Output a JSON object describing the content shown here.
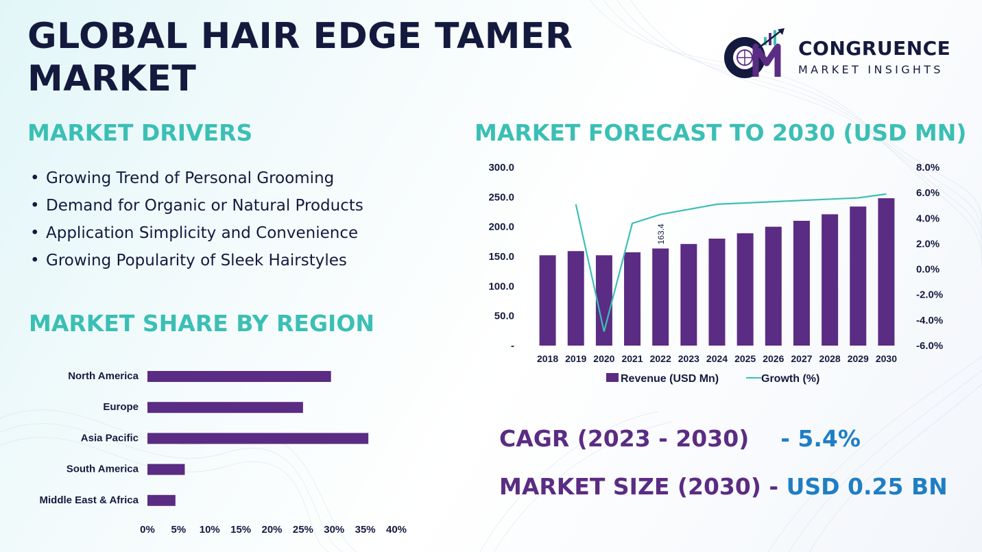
{
  "title": "GLOBAL HAIR EDGE TAMER MARKET",
  "logo": {
    "name": "CONGRUENCE",
    "tagline": "MARKET INSIGHTS",
    "monogram": "CM"
  },
  "drivers": {
    "heading": "MARKET DRIVERS",
    "items": [
      "Growing Trend of Personal Grooming",
      "Demand for Organic or Natural Products",
      "Application Simplicity and Convenience",
      "Growing Popularity of Sleek Hairstyles"
    ]
  },
  "forecast": {
    "heading": "MARKET FORECAST TO 2030 (USD MN)"
  },
  "region": {
    "heading": "MARKET SHARE BY REGION"
  },
  "kpis": {
    "cagr_label": "CAGR (2023 - 2030)",
    "cagr_value": "- 5.4%",
    "size_label": "MARKET SIZE (2030) -",
    "size_value": "USD 0.25 BN"
  },
  "colors": {
    "bar": "#5b2c83",
    "line": "#3bbfb5",
    "title": "#141a3e",
    "accent": "#3bbfb5",
    "value": "#1f7ec4"
  },
  "chart_data": [
    {
      "type": "bar",
      "combo_line": true,
      "categories": [
        "2018",
        "2019",
        "2020",
        "2021",
        "2022",
        "2023",
        "2024",
        "2025",
        "2026",
        "2027",
        "2028",
        "2029",
        "2030"
      ],
      "series": [
        {
          "name": "Revenue (USD Mn)",
          "type": "bar",
          "axis": "left",
          "values": [
            152,
            159,
            152,
            157,
            163.4,
            171,
            180,
            189,
            200,
            210,
            221,
            234,
            248
          ]
        },
        {
          "name": "Growth (%)",
          "type": "line",
          "axis": "right",
          "values": [
            null,
            5.1,
            -4.9,
            3.6,
            4.3,
            4.7,
            5.1,
            5.2,
            5.3,
            5.4,
            5.5,
            5.6,
            5.9
          ]
        }
      ],
      "data_labels": [
        {
          "category": "2022",
          "text": "163.4"
        }
      ],
      "ylim_left": [
        0,
        300
      ],
      "yticks_left": [
        "-",
        "50.0",
        "100.0",
        "150.0",
        "200.0",
        "250.0",
        "300.0"
      ],
      "ylim_right": [
        -6,
        8
      ],
      "yticks_right": [
        "-6.0%",
        "-4.0%",
        "-2.0%",
        "0.0%",
        "2.0%",
        "4.0%",
        "6.0%",
        "8.0%"
      ],
      "legend": "bottom",
      "grid": false
    },
    {
      "type": "bar",
      "orientation": "horizontal",
      "categories": [
        "North America",
        "Europe",
        "Asia Pacific",
        "South America",
        "Middle East & Africa"
      ],
      "values": [
        29.5,
        25,
        35.5,
        6,
        4.5
      ],
      "xlim": [
        0,
        40
      ],
      "xticks": [
        "0%",
        "5%",
        "10%",
        "15%",
        "20%",
        "25%",
        "30%",
        "35%",
        "40%"
      ],
      "grid": false
    }
  ]
}
